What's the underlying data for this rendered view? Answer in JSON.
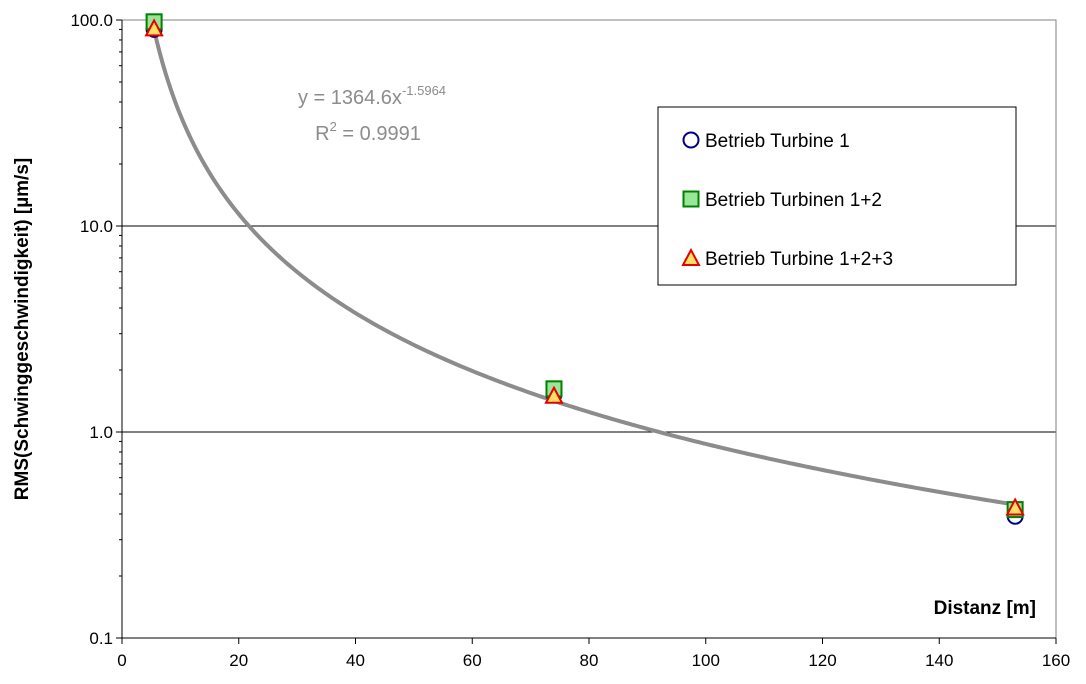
{
  "chart_data": {
    "type": "scatter",
    "x_scale": "linear",
    "y_scale": "log",
    "xlim": [
      0,
      160
    ],
    "ylim": [
      0.1,
      100
    ],
    "x_ticks": [
      0,
      20,
      40,
      60,
      80,
      100,
      120,
      140,
      160
    ],
    "y_ticks": [
      {
        "value": 0.1,
        "label": "0.1"
      },
      {
        "value": 1,
        "label": "1.0"
      },
      {
        "value": 10,
        "label": "10.0"
      },
      {
        "value": 100,
        "label": "100.0"
      }
    ],
    "xlabel": "Distanz [m]",
    "ylabel": "RMS(Schwinggeschwindigkeit) [µm/s]",
    "grid": "horizontal major lines",
    "legend_position": "top-right",
    "series": [
      {
        "name": "Betrieb Turbine 1",
        "marker": "circle",
        "color": "#000080",
        "fill": "none",
        "x": [
          5.5,
          74,
          153
        ],
        "y": [
          90,
          1.52,
          0.39
        ]
      },
      {
        "name": "Betrieb Turbinen 1+2",
        "marker": "square",
        "color": "#008000",
        "fill": "#99e699",
        "x": [
          5.5,
          74,
          153
        ],
        "y": [
          98,
          1.62,
          0.42
        ]
      },
      {
        "name": "Betrieb Turbine 1+2+3",
        "marker": "triangle",
        "color": "#e60000",
        "fill": "#ffe066",
        "x": [
          5.5,
          74,
          153
        ],
        "y": [
          91,
          1.5,
          0.43
        ]
      }
    ],
    "trendline": {
      "type": "power",
      "coefficient": 1364.6,
      "exponent": -1.5964,
      "color": "#8c8c8c",
      "equation_base": "y = 1364.6x",
      "equation_exponent": "-1.5964",
      "r2_prefix": "R",
      "r2_suffix": " = 0.9991"
    }
  }
}
